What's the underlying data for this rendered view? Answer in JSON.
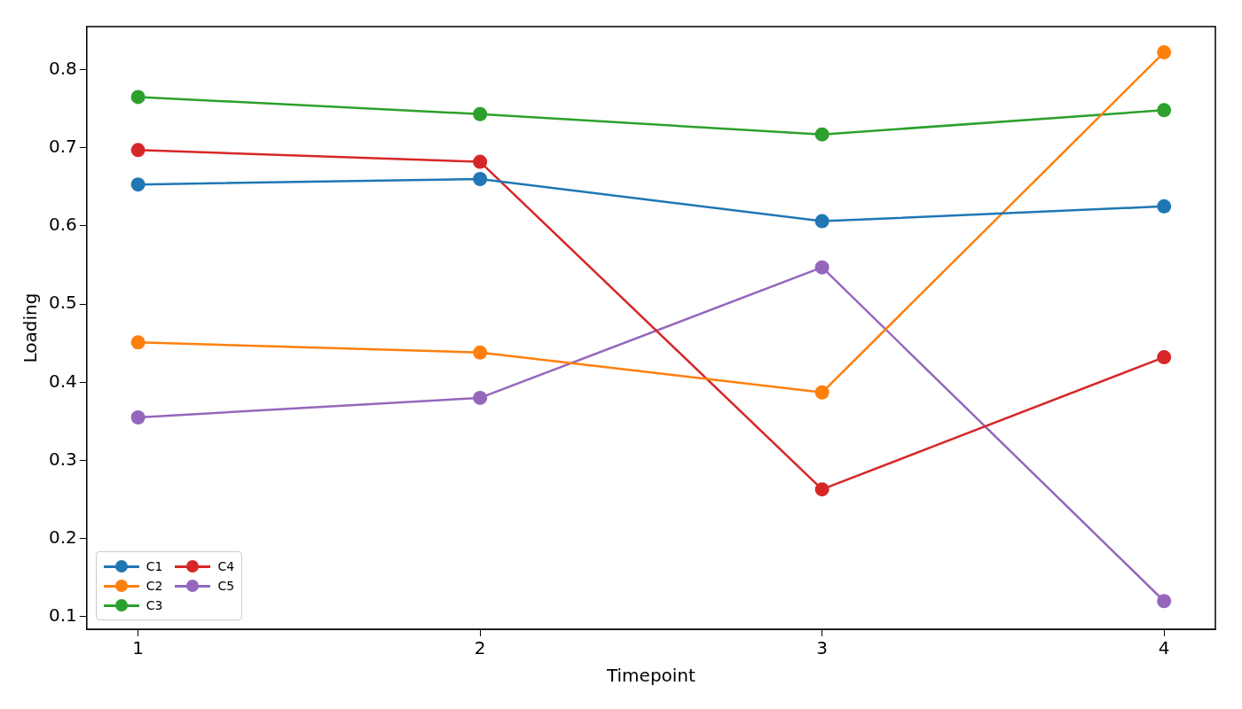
{
  "chart_data": {
    "type": "line",
    "xlabel": "Timepoint",
    "ylabel": "Loading",
    "x": [
      1,
      2,
      3,
      4
    ],
    "xlim": [
      0.85,
      4.15
    ],
    "xticks": [
      1,
      2,
      3,
      4
    ],
    "ylim": [
      0.084,
      0.855
    ],
    "yticks": [
      0.1,
      0.2,
      0.3,
      0.4,
      0.5,
      0.6,
      0.7,
      0.8
    ],
    "series": [
      {
        "name": "C1",
        "color": "#1f77b4",
        "values": [
          0.653,
          0.66,
          0.606,
          0.625
        ]
      },
      {
        "name": "C2",
        "color": "#ff7f0e",
        "values": [
          0.451,
          0.438,
          0.387,
          0.822
        ]
      },
      {
        "name": "C3",
        "color": "#2ca02c",
        "values": [
          0.765,
          0.743,
          0.717,
          0.748
        ]
      },
      {
        "name": "C4",
        "color": "#d62728",
        "values": [
          0.697,
          0.682,
          0.263,
          0.432
        ]
      },
      {
        "name": "C5",
        "color": "#9467bd",
        "values": [
          0.355,
          0.38,
          0.547,
          0.12
        ]
      }
    ],
    "marker": "circle",
    "line_style": "solid",
    "grid": false,
    "legend": "bottom left"
  }
}
